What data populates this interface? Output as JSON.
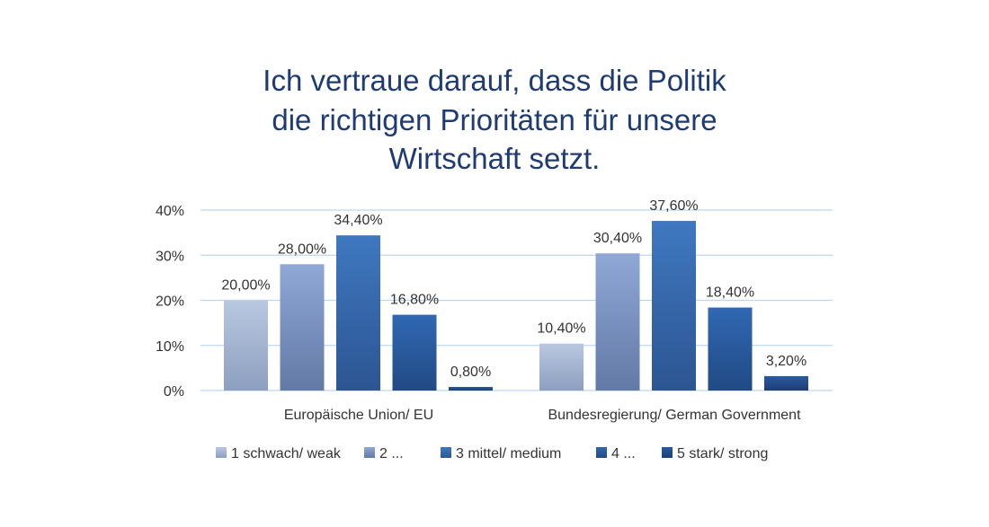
{
  "chart_data": {
    "type": "bar",
    "title": [
      "Ich vertraue darauf, dass die Politik",
      "die richtigen Prioritäten für unsere",
      "Wirtschaft setzt."
    ],
    "categories": [
      "Europäische Union/ EU",
      "Bundesregierung/ German Government"
    ],
    "series": [
      {
        "name": "1 schwach/ weak",
        "values": [
          20.0,
          10.4
        ],
        "labels": [
          "20,00%",
          "10,40%"
        ],
        "color_top": "#b9c8e0",
        "color_bottom": "#8d9fc0"
      },
      {
        "name": "2 ...",
        "values": [
          28.0,
          30.4
        ],
        "labels": [
          "28,00%",
          "30,40%"
        ],
        "color_top": "#8fa8d6",
        "color_bottom": "#6379a6"
      },
      {
        "name": "3 mittel/ medium",
        "values": [
          34.4,
          37.6
        ],
        "labels": [
          "34,40%",
          "37,60%"
        ],
        "color_top": "#3f78c0",
        "color_bottom": "#2c5592"
      },
      {
        "name": "4 ...",
        "values": [
          16.8,
          18.4
        ],
        "labels": [
          "16,80%",
          "18,40%"
        ],
        "color_top": "#3068b3",
        "color_bottom": "#214a84"
      },
      {
        "name": "5 stark/ strong",
        "values": [
          0.8,
          3.2
        ],
        "labels": [
          "0,80%",
          "3,20%"
        ],
        "color_top": "#2a5aa0",
        "color_bottom": "#1d3e72"
      }
    ],
    "y_ticks": [
      "0%",
      "10%",
      "20%",
      "30%",
      "40%"
    ],
    "ylim": [
      0,
      40
    ],
    "grid": true,
    "gridline_color": "#bfd7ee",
    "title_color": "#1f3b73",
    "legend_position": "bottom"
  }
}
